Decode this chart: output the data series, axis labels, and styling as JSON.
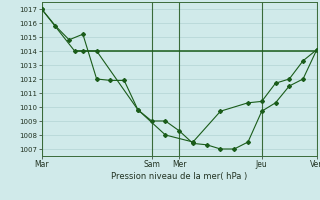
{
  "xlabel": "Pression niveau de la mer( hPa )",
  "bg_color": "#d0eaea",
  "grid_color": "#b8d8d8",
  "line_color": "#1a5c1a",
  "ylim": [
    1006.5,
    1017.5
  ],
  "yticks": [
    1007,
    1008,
    1009,
    1010,
    1011,
    1012,
    1013,
    1014,
    1015,
    1016,
    1017
  ],
  "series1_x": [
    0,
    0.5,
    1.0,
    1.5,
    2.0,
    2.5,
    3.0,
    3.5,
    4.0,
    4.5,
    5.0,
    5.5,
    6.0,
    6.5,
    7.0,
    7.5,
    8.0,
    8.5,
    9.0,
    9.5,
    10.0
  ],
  "series1_y": [
    1017.0,
    1015.8,
    1014.8,
    1015.2,
    1012.0,
    1011.9,
    1011.9,
    1009.8,
    1009.0,
    1009.0,
    1008.3,
    1007.4,
    1007.3,
    1007.0,
    1007.0,
    1007.5,
    1009.7,
    1010.3,
    1011.5,
    1012.0,
    1014.1
  ],
  "series2_x": [
    0,
    1.2,
    1.5,
    2.0,
    3.5,
    4.5,
    5.5,
    6.5,
    7.5,
    8.0,
    8.5,
    9.0,
    9.5,
    10.0
  ],
  "series2_y": [
    1017.0,
    1014.0,
    1014.0,
    1014.0,
    1009.8,
    1008.0,
    1007.5,
    1009.7,
    1010.3,
    1010.4,
    1011.7,
    1012.0,
    1013.3,
    1014.1
  ],
  "flat_line_y": 1014.0,
  "flat_line_x_start": 1.2,
  "flat_line_x_end": 10.0,
  "vline_positions": [
    0,
    4,
    5,
    8,
    10
  ],
  "xtick_positions": [
    0,
    4,
    5,
    8,
    10
  ],
  "xtick_labels": [
    "Mar",
    "Sam",
    "Mer",
    "Jeu",
    "Ven"
  ]
}
